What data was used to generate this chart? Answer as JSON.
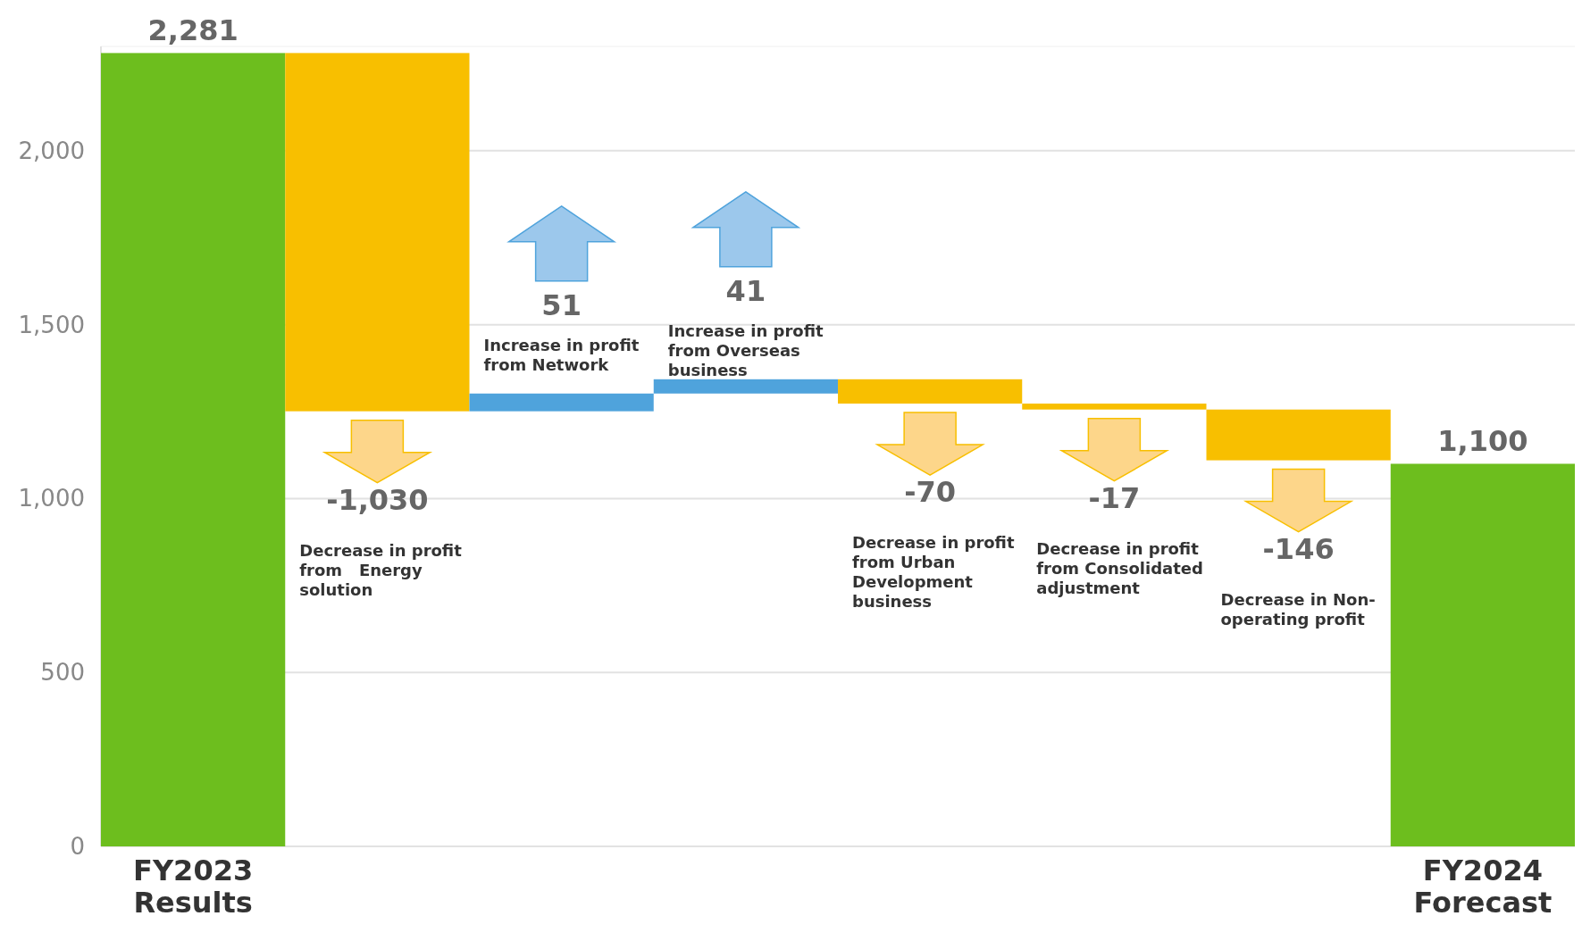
{
  "chart_data": {
    "type": "bar",
    "categories": [
      "FY2023 Results",
      null,
      null,
      null,
      null,
      null,
      null,
      "FY2024 Forecast"
    ],
    "values": [
      2281,
      -1030,
      51,
      41,
      -70,
      -17,
      -146,
      1100
    ],
    "base": [
      0,
      2281,
      1251,
      1302,
      1343,
      1273,
      1256,
      0
    ],
    "colors": [
      "#6dbe1e",
      "#f8bf00",
      "#4fa3dc",
      "#4fa3dc",
      "#f8bf00",
      "#f8bf00",
      "#f8bf00",
      "#6dbe1e"
    ],
    "value_labels": [
      "2,281",
      "-1,030",
      "51",
      "41",
      "-70",
      "-17",
      "-146",
      "1,100"
    ],
    "annotations": [
      "Decrease in profit from   Energy solution",
      "Increase in profit from Network",
      "Increase in profit from Overseas business",
      "Decrease in profit from Urban Development business",
      "Decrease in profit from Consolidated adjustment",
      "Decrease in Non-operating profit"
    ],
    "ylim": [
      0,
      2300
    ],
    "yticks": [
      0,
      500,
      {
        "value": 1000,
        "label": "1,000"
      },
      {
        "value": 1500,
        "label": "1,500"
      },
      {
        "value": 2000,
        "label": "2,000"
      }
    ],
    "grid": "y"
  }
}
